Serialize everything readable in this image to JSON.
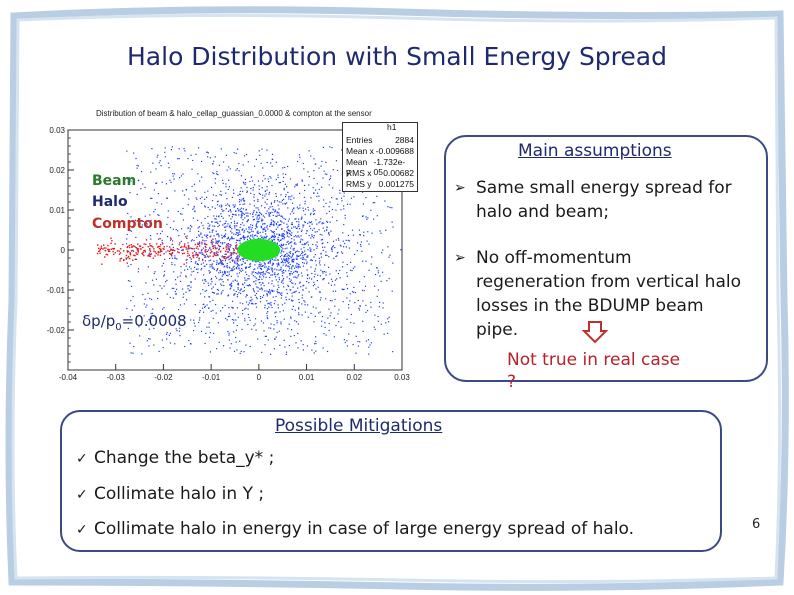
{
  "slide": {
    "title": "Halo Distribution with Small Energy Spread",
    "page_number": "6"
  },
  "plot": {
    "caption": "Distribution of beam & halo_cellap_guassian_0.0000 & compton at the sensor",
    "legend": {
      "beam": "Beam",
      "halo": "Halo",
      "compton": "Compton"
    },
    "delta_p_text": {
      "prefix": "δp/p",
      "sub": "0",
      "suffix": "=0.0008"
    },
    "stats": {
      "name": "h1",
      "rows": [
        {
          "label": "Entries",
          "value": "2884"
        },
        {
          "label": "Mean x",
          "value": "-0.009688"
        },
        {
          "label": "Mean y",
          "value": "-1.732e-05"
        },
        {
          "label": "RMS x",
          "value": "0.00682"
        },
        {
          "label": "RMS y",
          "value": "0.001275"
        }
      ]
    },
    "colors": {
      "beam": "#22dd22",
      "halo": "#1a3dff",
      "compton": "#e01a1a"
    }
  },
  "chart_data": {
    "type": "scatter",
    "title": "Distribution of beam & halo_cellap_guassian_0.0000 & compton at the sensor",
    "xlabel": "",
    "ylabel": "",
    "xlim": [
      -0.04,
      0.03
    ],
    "ylim": [
      -0.03,
      0.03
    ],
    "x_ticks": [
      "-0.04",
      "-0.03",
      "-0.02",
      "-0.01",
      "0",
      "0.01",
      "0.02",
      "0.03"
    ],
    "y_ticks": [
      "0.03",
      "0.02",
      "0.01",
      "0",
      "-0.01",
      "-0.02"
    ],
    "series": [
      {
        "name": "Halo",
        "color": "#1a3dff",
        "x_range": [
          -0.03,
          0.03
        ],
        "y_range": [
          -0.027,
          0.026
        ]
      },
      {
        "name": "Beam",
        "color": "#22dd22",
        "center": [
          0.0,
          0.0
        ],
        "x_width": 0.0045,
        "y_width": 0.0028
      },
      {
        "name": "Compton",
        "color": "#e01a1a",
        "x_range": [
          -0.034,
          -0.004
        ],
        "y_center": 0.0
      }
    ]
  },
  "assumptions": {
    "title": "Main assumptions",
    "items": [
      "Same small energy spread for halo and beam;",
      "No off-momentum regeneration from vertical halo losses in the BDUMP beam pipe."
    ],
    "note_line1": "Not true in real case",
    "note_line2": "?"
  },
  "mitigations": {
    "title": "Possible Mitigations",
    "items": [
      "Change the beta_y* ;",
      "Collimate halo in Y ;",
      "Collimate halo in energy in case of large energy spread of halo."
    ]
  }
}
